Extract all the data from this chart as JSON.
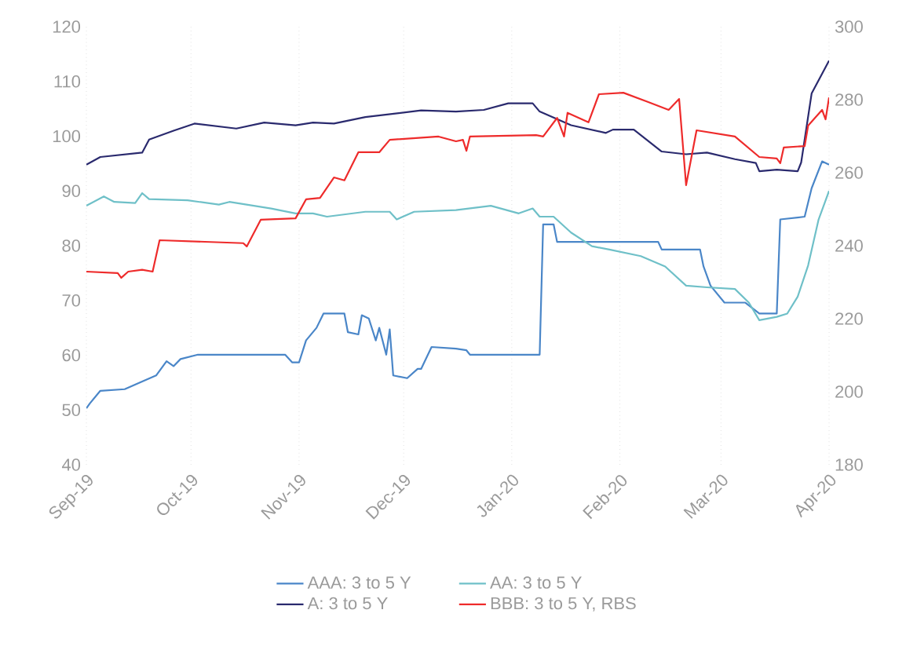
{
  "chart_data": {
    "type": "line",
    "xlim": [
      "2019-09-01",
      "2020-04-01"
    ],
    "xticks": [
      {
        "value": "2019-09-01",
        "label": "Sep-19"
      },
      {
        "value": "2019-10-01",
        "label": "Oct-19"
      },
      {
        "value": "2019-11-01",
        "label": "Nov-19"
      },
      {
        "value": "2019-12-01",
        "label": "Dec-19"
      },
      {
        "value": "2020-01-01",
        "label": "Jan-20"
      },
      {
        "value": "2020-02-01",
        "label": "Feb-20"
      },
      {
        "value": "2020-03-01",
        "label": "Mar-20"
      },
      {
        "value": "2020-04-01",
        "label": "Apr-20"
      }
    ],
    "ylim": [
      40,
      120
    ],
    "yticks": [
      40,
      50,
      60,
      70,
      80,
      90,
      100,
      110,
      120
    ],
    "y2lim": [
      180,
      300
    ],
    "y2ticks": [
      180,
      200,
      220,
      240,
      260,
      280,
      300
    ],
    "grid": "x",
    "legend": "bottom",
    "marker": "none",
    "line_style": "solid",
    "series": [
      {
        "name": "AAA: 3 to 5 Y",
        "color": "#4a86c8",
        "x": [
          "2019-09-01",
          "2019-09-02",
          "2019-09-05",
          "2019-09-12",
          "2019-09-17",
          "2019-09-21",
          "2019-09-24",
          "2019-09-26",
          "2019-09-28",
          "2019-10-03",
          "2019-10-28",
          "2019-10-30",
          "2019-11-01",
          "2019-11-03",
          "2019-11-06",
          "2019-11-08",
          "2019-11-14",
          "2019-11-15",
          "2019-11-18",
          "2019-11-19",
          "2019-11-21",
          "2019-11-23",
          "2019-11-24",
          "2019-11-26",
          "2019-11-27",
          "2019-11-28",
          "2019-12-02",
          "2019-12-05",
          "2019-12-06",
          "2019-12-09",
          "2019-12-16",
          "2019-12-19",
          "2019-12-20",
          "2020-01-09",
          "2020-01-10",
          "2020-01-13",
          "2020-01-14",
          "2020-02-12",
          "2020-02-13",
          "2020-02-24",
          "2020-02-25",
          "2020-02-27",
          "2020-03-02",
          "2020-03-08",
          "2020-03-12",
          "2020-03-17",
          "2020-03-18",
          "2020-03-25",
          "2020-03-27",
          "2020-03-30",
          "2020-04-01"
        ],
        "values": [
          50.3,
          51.2,
          53.5,
          53.8,
          55.2,
          56.3,
          58.9,
          58,
          59.3,
          60.1,
          60.1,
          58.7,
          58.7,
          62.7,
          65,
          67.6,
          67.6,
          64.2,
          63.8,
          67.3,
          66.7,
          62.7,
          65,
          60.1,
          64.7,
          56.3,
          55.8,
          57.5,
          57.5,
          61.5,
          61.2,
          60.9,
          60.1,
          60.1,
          83.9,
          83.9,
          80.7,
          80.7,
          79.3,
          79.3,
          76.2,
          72.7,
          69.6,
          69.6,
          67.6,
          67.6,
          84.8,
          85.3,
          90.5,
          95.4,
          94.8
        ]
      },
      {
        "name": "AA: 3 to 5 Y",
        "color": "#6fc0c8",
        "x": [
          "2019-09-01",
          "2019-09-06",
          "2019-09-09",
          "2019-09-15",
          "2019-09-17",
          "2019-09-19",
          "2019-09-30",
          "2019-10-09",
          "2019-10-12",
          "2019-10-24",
          "2019-10-31",
          "2019-11-05",
          "2019-11-09",
          "2019-11-20",
          "2019-11-27",
          "2019-11-29",
          "2019-12-04",
          "2019-12-16",
          "2019-12-26",
          "2020-01-03",
          "2020-01-07",
          "2020-01-09",
          "2020-01-13",
          "2020-01-18",
          "2020-01-24",
          "2020-01-29",
          "2020-02-07",
          "2020-02-14",
          "2020-02-20",
          "2020-02-26",
          "2020-03-05",
          "2020-03-09",
          "2020-03-12",
          "2020-03-17",
          "2020-03-20",
          "2020-03-23",
          "2020-03-26",
          "2020-03-29",
          "2020-04-01"
        ],
        "values": [
          87.3,
          89,
          88,
          87.8,
          89.6,
          88.5,
          88.3,
          87.5,
          88,
          86.8,
          85.9,
          85.9,
          85.3,
          86.2,
          86.2,
          84.8,
          86.2,
          86.5,
          87.3,
          85.9,
          86.8,
          85.3,
          85.3,
          82.4,
          79.9,
          79.3,
          78.1,
          76.2,
          72.7,
          72.4,
          72.1,
          69.6,
          66.4,
          67,
          67.6,
          70.7,
          76.4,
          84.8,
          90
        ]
      },
      {
        "name": "A: 3 to 5 Y",
        "color": "#2a2a6e",
        "x": [
          "2019-09-01",
          "2019-09-05",
          "2019-09-17",
          "2019-09-19",
          "2019-09-26",
          "2019-10-02",
          "2019-10-14",
          "2019-10-22",
          "2019-10-31",
          "2019-11-05",
          "2019-11-11",
          "2019-11-20",
          "2019-12-06",
          "2019-12-16",
          "2019-12-24",
          "2019-12-31",
          "2020-01-07",
          "2020-01-09",
          "2020-01-18",
          "2020-01-28",
          "2020-01-30",
          "2020-02-05",
          "2020-02-13",
          "2020-02-20",
          "2020-02-26",
          "2020-03-05",
          "2020-03-11",
          "2020-03-12",
          "2020-03-17",
          "2020-03-23",
          "2020-03-24",
          "2020-03-27",
          "2020-04-01"
        ],
        "values": [
          94.8,
          96.2,
          97,
          99.4,
          101,
          102.3,
          101.4,
          102.5,
          102,
          102.5,
          102.3,
          103.5,
          104.7,
          104.5,
          104.8,
          106,
          106,
          104.5,
          102,
          100.6,
          101.2,
          101.2,
          97.2,
          96.7,
          97,
          95.8,
          95.1,
          93.6,
          93.9,
          93.6,
          95.2,
          107.8,
          113.8
        ]
      },
      {
        "name": "BBB: 3 to 5 Y, RBS",
        "color": "#ee2b2b",
        "axis": "y2",
        "x": [
          "2019-09-01",
          "2019-09-10",
          "2019-09-11",
          "2019-09-13",
          "2019-09-17",
          "2019-09-20",
          "2019-09-22",
          "2019-10-16",
          "2019-10-17",
          "2019-10-21",
          "2019-10-31",
          "2019-11-03",
          "2019-11-07",
          "2019-11-11",
          "2019-11-14",
          "2019-11-18",
          "2019-11-24",
          "2019-11-27",
          "2019-12-11",
          "2019-12-16",
          "2019-12-18",
          "2019-12-19",
          "2019-12-20",
          "2020-01-08",
          "2020-01-10",
          "2020-01-14",
          "2020-01-16",
          "2020-01-17",
          "2020-01-23",
          "2020-01-26",
          "2020-02-02",
          "2020-02-09",
          "2020-02-15",
          "2020-02-18",
          "2020-02-20",
          "2020-02-23",
          "2020-03-05",
          "2020-03-12",
          "2020-03-17",
          "2020-03-18",
          "2020-03-19",
          "2020-03-25",
          "2020-03-26",
          "2020-03-30",
          "2020-03-31",
          "2020-04-01"
        ],
        "values": [
          232.9,
          232.5,
          231.2,
          232.9,
          233.4,
          232.9,
          241.5,
          240.7,
          239.8,
          247.1,
          247.5,
          252.7,
          253.1,
          258.7,
          257.9,
          265.6,
          265.6,
          269,
          269.9,
          268.6,
          269,
          266,
          269.9,
          270.3,
          269.9,
          275,
          269.9,
          276.4,
          273.8,
          281.5,
          281.9,
          279.4,
          277.2,
          280.2,
          256.6,
          271.6,
          269.9,
          264.3,
          263.9,
          262.6,
          266.9,
          267.3,
          272.9,
          277.2,
          274.6,
          280.6
        ]
      }
    ]
  }
}
